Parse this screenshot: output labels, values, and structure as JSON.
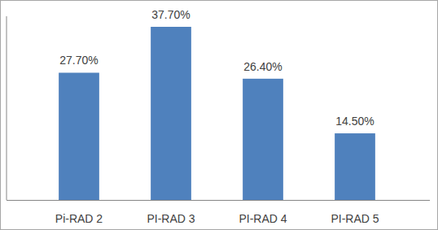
{
  "chart_data": {
    "type": "bar",
    "categories": [
      "Pi-RAD 2",
      "PI-RAD 3",
      "PI-RAD 4",
      "PI-RAD 5"
    ],
    "values": [
      27.7,
      37.7,
      26.4,
      14.5
    ],
    "value_labels": [
      "27.70%",
      "37.70%",
      "26.40%",
      "14.50%"
    ],
    "color": "#4f81bd",
    "ylim": [
      0,
      40
    ],
    "data_labels": true,
    "tick_labels": "x",
    "grid": false
  }
}
